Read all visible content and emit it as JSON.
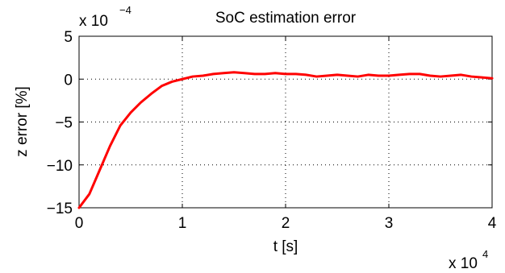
{
  "chart_data": {
    "type": "line",
    "title": "SoC estimation error",
    "xlabel": "t [s]",
    "ylabel": "z error [%]",
    "x_multiplier": {
      "base": "x 10",
      "exponent": "4"
    },
    "y_multiplier": {
      "base": "x 10",
      "exponent": "−4"
    },
    "xlim": [
      0,
      4
    ],
    "ylim": [
      -15,
      5
    ],
    "x_ticks": [
      0,
      1,
      2,
      3,
      4
    ],
    "x_tick_labels": [
      "0",
      "1",
      "2",
      "3",
      "4"
    ],
    "y_ticks": [
      5,
      0,
      -5,
      -10,
      -15
    ],
    "y_tick_labels": [
      "5",
      "0",
      "−5",
      "−10",
      "−15"
    ],
    "grid": true,
    "series": [
      {
        "color": "#ff0000",
        "x": [
          0,
          0.1,
          0.2,
          0.3,
          0.4,
          0.5,
          0.6,
          0.7,
          0.8,
          0.9,
          1.0,
          1.1,
          1.2,
          1.3,
          1.4,
          1.5,
          1.6,
          1.7,
          1.8,
          1.9,
          2.0,
          2.1,
          2.2,
          2.3,
          2.4,
          2.5,
          2.6,
          2.7,
          2.8,
          2.9,
          3.0,
          3.1,
          3.2,
          3.3,
          3.4,
          3.5,
          3.6,
          3.7,
          3.8,
          3.9,
          4.0
        ],
        "values": [
          -15,
          -13.4,
          -10.6,
          -7.8,
          -5.4,
          -3.9,
          -2.7,
          -1.7,
          -0.8,
          -0.3,
          0,
          0.3,
          0.4,
          0.6,
          0.7,
          0.8,
          0.7,
          0.6,
          0.6,
          0.7,
          0.6,
          0.6,
          0.5,
          0.3,
          0.4,
          0.5,
          0.4,
          0.3,
          0.5,
          0.4,
          0.4,
          0.5,
          0.6,
          0.6,
          0.4,
          0.3,
          0.4,
          0.5,
          0.3,
          0.2,
          0.1
        ]
      }
    ]
  }
}
